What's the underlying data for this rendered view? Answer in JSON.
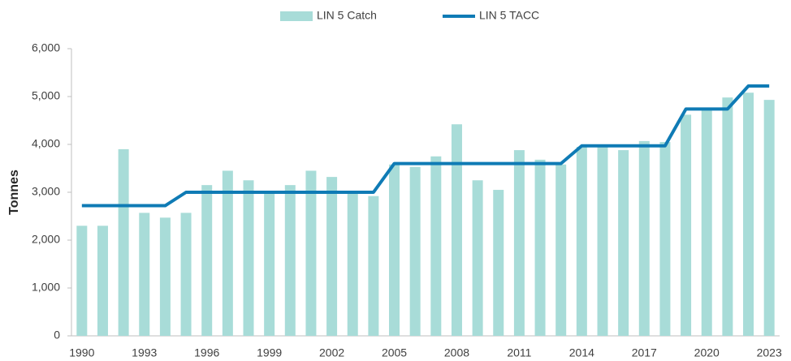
{
  "chart_data": {
    "type": "bar_line",
    "y_label": "Tonnes",
    "categories": [
      "1990",
      null,
      null,
      "1993",
      null,
      null,
      "1996",
      null,
      null,
      "1999",
      null,
      null,
      "2002",
      null,
      null,
      "2005",
      null,
      null,
      "2008",
      null,
      null,
      "2011",
      null,
      null,
      "2014",
      null,
      null,
      "2017",
      null,
      null,
      "2020",
      null,
      null,
      "2023"
    ],
    "series": [
      {
        "name": "LIN 5 Catch",
        "type": "bar",
        "color": "#a8dcd8",
        "values": [
          2300,
          2300,
          3900,
          2570,
          2470,
          2570,
          3150,
          3450,
          3250,
          2980,
          3150,
          3450,
          3320,
          2980,
          2920,
          3580,
          3530,
          3750,
          4420,
          3250,
          3050,
          3880,
          3680,
          3580,
          3950,
          3950,
          3880,
          4070,
          4050,
          4620,
          4750,
          4980,
          5080,
          4930
        ]
      },
      {
        "name": "LIN 5 TACC",
        "type": "line",
        "color": "#0f7bb5",
        "values": [
          2720,
          2720,
          2720,
          2720,
          2720,
          3000,
          3000,
          3000,
          3000,
          3000,
          3000,
          3000,
          3000,
          3000,
          3000,
          3600,
          3600,
          3600,
          3600,
          3600,
          3600,
          3600,
          3600,
          3600,
          3970,
          3970,
          3970,
          3970,
          3970,
          4740,
          4740,
          4740,
          5220,
          5220
        ]
      }
    ],
    "ylim": [
      0,
      6000
    ],
    "yticks": [
      0,
      {
        "value": 1000,
        "label": "1,000"
      },
      {
        "value": 2000,
        "label": "2,000"
      },
      {
        "value": 3000,
        "label": "3,000"
      },
      {
        "value": 4000,
        "label": "4,000"
      },
      {
        "value": 5000,
        "label": "5,000"
      },
      {
        "value": 6000,
        "label": "6,000"
      }
    ],
    "legend": "top"
  }
}
